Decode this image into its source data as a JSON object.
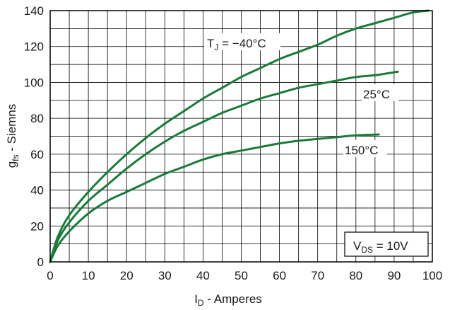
{
  "chart_data": {
    "type": "line",
    "xlabel": "I_D - Amperes",
    "xlabel_main": "I",
    "xlabel_sub": "D",
    "xlabel_rest": " - Amperes",
    "ylabel": "g_fs - Siemns",
    "ylabel_main": "g",
    "ylabel_sub": "fs",
    "ylabel_rest": " - Siemns",
    "xlim": [
      0,
      100
    ],
    "ylim": [
      0,
      140
    ],
    "x_ticks": [
      "0",
      "10",
      "20",
      "30",
      "40",
      "50",
      "60",
      "70",
      "80",
      "90",
      "100"
    ],
    "y_ticks": [
      "0",
      "20",
      "40",
      "60",
      "80",
      "100",
      "120",
      "140"
    ],
    "grid": true,
    "series": [
      {
        "name": "T_J = −40°C",
        "color": "#1a7a3a",
        "x": [
          0,
          2,
          5,
          10,
          15,
          20,
          25,
          30,
          35,
          40,
          45,
          50,
          55,
          60,
          65,
          70,
          75,
          80,
          85,
          90,
          95,
          99
        ],
        "y": [
          0,
          14,
          26,
          39,
          50,
          60,
          69,
          77,
          84,
          91,
          97,
          103,
          108,
          113,
          117,
          121,
          126,
          130,
          133,
          136,
          139,
          140
        ]
      },
      {
        "name": "25°C",
        "color": "#1a7a3a",
        "x": [
          0,
          2,
          5,
          10,
          15,
          20,
          25,
          30,
          35,
          40,
          45,
          50,
          55,
          60,
          65,
          70,
          75,
          80,
          85,
          91
        ],
        "y": [
          0,
          12,
          22,
          34,
          43,
          52,
          60,
          67,
          73,
          78,
          83,
          87,
          91,
          94,
          97,
          99,
          101,
          103,
          104,
          106
        ]
      },
      {
        "name": "150°C",
        "color": "#1a7a3a",
        "x": [
          0,
          2,
          5,
          10,
          15,
          20,
          25,
          30,
          35,
          40,
          45,
          50,
          55,
          60,
          65,
          70,
          75,
          80,
          86
        ],
        "y": [
          0,
          9,
          17,
          27,
          34,
          39,
          44,
          49,
          53,
          57,
          60,
          62,
          64,
          66,
          67.5,
          68.5,
          69.5,
          70.5,
          71
        ]
      }
    ],
    "annotations": {
      "tj_main": "T",
      "tj_sub": "J",
      "tj_rest": " = −40°C",
      "t25": "25°C",
      "t150": "150°C",
      "vds_main": "V",
      "vds_sub": "DS",
      "vds_rest": " = 10V"
    }
  }
}
